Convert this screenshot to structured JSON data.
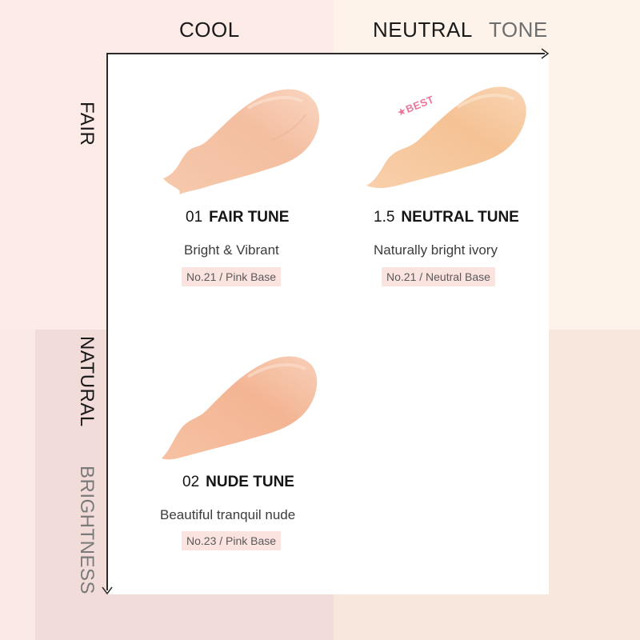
{
  "axes": {
    "columns": [
      "COOL",
      "NEUTRAL"
    ],
    "tone_label": "TONE",
    "rows": [
      "FAIR",
      "NATURAL"
    ],
    "brightness_label": "BRIGHTNESS"
  },
  "shades": [
    {
      "number": "01",
      "name": "FAIR TUNE",
      "description": "Bright & Vibrant",
      "tag": "No.21 / Pink Base",
      "swatch_color": "#f6c7ab"
    },
    {
      "number": "1.5",
      "name": "NEUTRAL TUNE",
      "description": "Naturally bright ivory",
      "tag": "No.21 / Neutral Base",
      "swatch_color": "#f7c79d",
      "badge": "★BEST"
    },
    {
      "number": "02",
      "name": "NUDE TUNE",
      "description": "Beautiful tranquil nude",
      "tag": "No.23 / Pink Base",
      "swatch_color": "#f5bd9c"
    }
  ],
  "colors": {
    "cool_bg": "#fcebe6",
    "neutral_bg": "#fdf3ea",
    "tag_bg": "#fbe3df",
    "badge": "#e8789a"
  }
}
